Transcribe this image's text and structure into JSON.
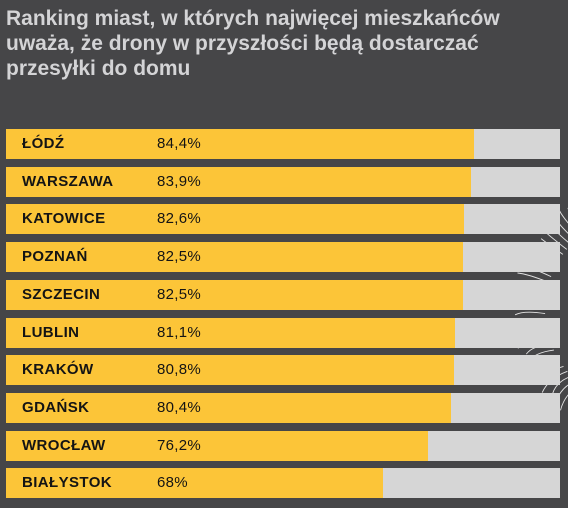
{
  "chart_data": {
    "type": "bar",
    "orientation": "horizontal",
    "title": "Ranking miast, w których najwięcej mieszkańców uważa, że drony w przyszłości będą dostarczać przesyłki do domu",
    "categories": [
      "ŁÓDŹ",
      "WARSZAWA",
      "KATOWICE",
      "POZNAŃ",
      "SZCZECIN",
      "LUBLIN",
      "KRAKÓW",
      "GDAŃSK",
      "WROCŁAW",
      "BIAŁYSTOK"
    ],
    "values": [
      84.4,
      83.9,
      82.6,
      82.5,
      82.5,
      81.1,
      80.8,
      80.4,
      76.2,
      68
    ],
    "value_labels": [
      "84,4%",
      "83,9%",
      "82,6%",
      "82,5%",
      "82,5%",
      "81,1%",
      "80,8%",
      "80,4%",
      "76,2%",
      "68%"
    ],
    "xlim": [
      0,
      100
    ],
    "unit": "%",
    "grid": false,
    "legend": "none",
    "colors": {
      "background": "#464648",
      "bar_fill": "#fcc538",
      "bar_track": "#d6d6d6",
      "title": "#d4d4d6",
      "label": "#141414"
    }
  }
}
